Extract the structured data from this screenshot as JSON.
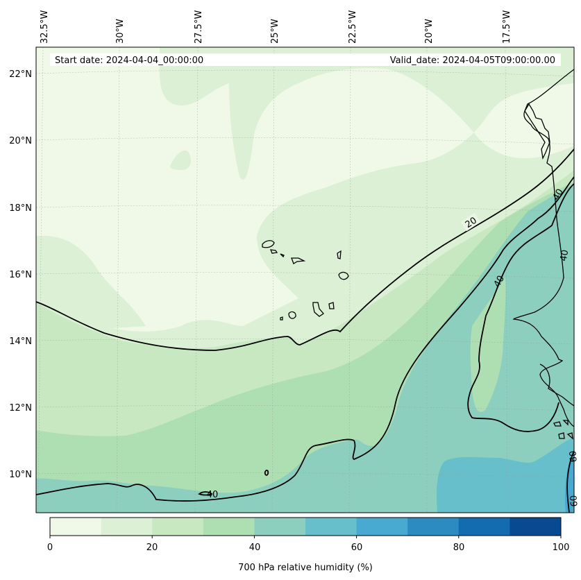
{
  "header": {
    "start_date": "Start date: 2024-04-04_00:00:00",
    "valid_date": "Valid_date: 2024-04-05T09:00:00.00"
  },
  "longitude_labels": [
    "32.5°W",
    "30°W",
    "27.5°W",
    "25°W",
    "22.5°W",
    "20°W",
    "17.5°W"
  ],
  "latitude_labels": [
    "22°N",
    "20°N",
    "18°N",
    "16°N",
    "14°N",
    "12°N",
    "10°N"
  ],
  "contour_labels": {
    "c20": "20",
    "c40a": "40",
    "c40b": "40",
    "c40c": "40",
    "c40d": "40",
    "c60a": "60",
    "c60b": "60"
  },
  "colorbar": {
    "label": "700 hPa relative humidity (%)",
    "ticks": [
      "0",
      "20",
      "40",
      "60",
      "80",
      "100"
    ],
    "colors": [
      "#f0f9e8",
      "#dcf0d6",
      "#c8e8c2",
      "#aedfb3",
      "#8ccfbe",
      "#67bfcb",
      "#48aad0",
      "#2c8bc0",
      "#136bb0",
      "#084a91"
    ]
  },
  "chart_data": {
    "type": "heatmap",
    "variable": "700 hPa relative humidity",
    "units": "%",
    "levels": [
      0,
      10,
      20,
      30,
      40,
      50,
      60,
      70,
      80,
      90,
      100
    ],
    "contour_lines": [
      20,
      40,
      60
    ],
    "lon_range": [
      "32.5°W",
      "15°W"
    ],
    "lat_range": [
      "9°N",
      "23°N"
    ]
  }
}
